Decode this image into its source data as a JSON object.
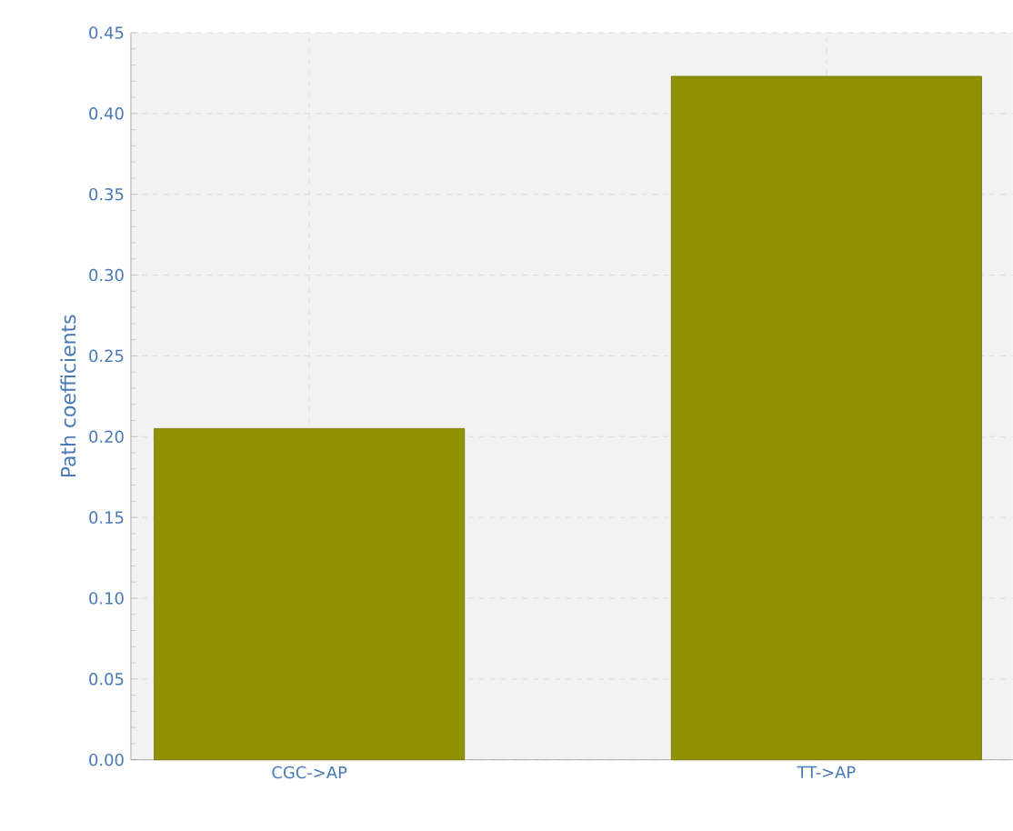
{
  "chart_data": {
    "type": "bar",
    "ylabel": "Path coefficients",
    "categories": [
      "CGC->AP",
      "TT->AP"
    ],
    "values": [
      0.205,
      0.423
    ],
    "color": "#8f9100",
    "ylim": [
      0,
      0.45
    ],
    "yticks": [
      {
        "value": 0,
        "label": "0.00"
      },
      {
        "value": 0.05,
        "label": "0.05"
      },
      {
        "value": 0.1,
        "label": "0.10"
      },
      {
        "value": 0.15,
        "label": "0.15"
      },
      {
        "value": 0.2,
        "label": "0.20"
      },
      {
        "value": 0.25,
        "label": "0.25"
      },
      {
        "value": 0.3,
        "label": "0.30"
      },
      {
        "value": 0.35,
        "label": "0.35"
      },
      {
        "value": 0.4,
        "label": "0.40"
      },
      {
        "value": 0.45,
        "label": "0.45"
      }
    ],
    "grid": true
  }
}
